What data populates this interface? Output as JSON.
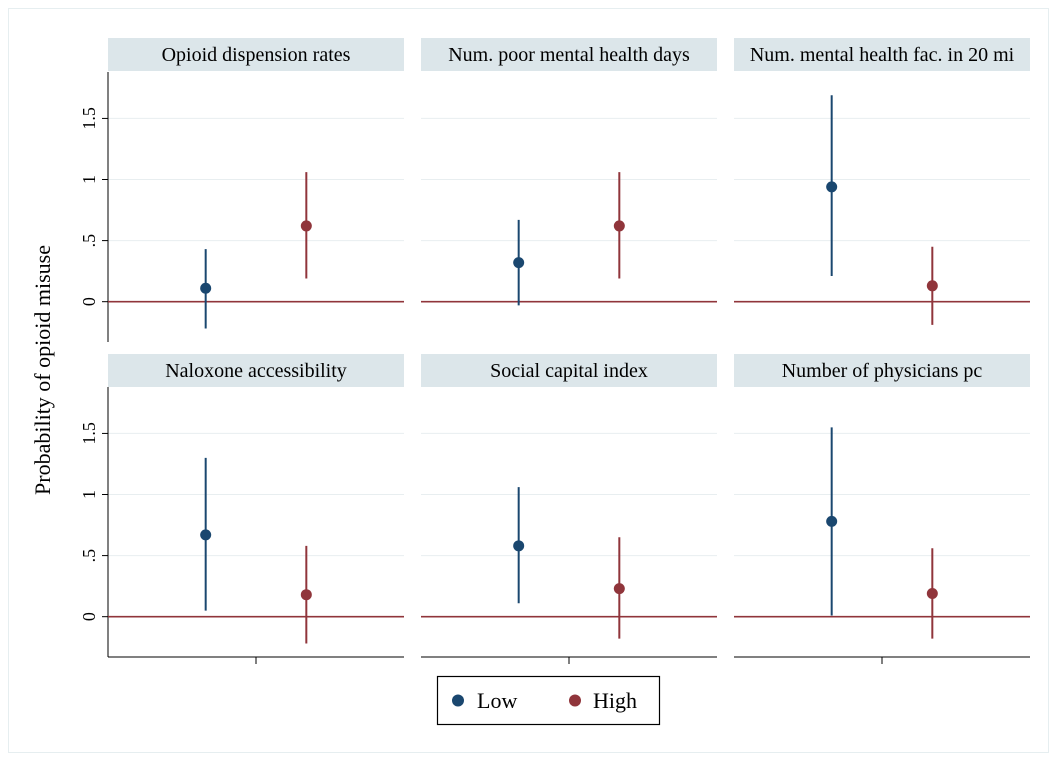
{
  "chart_data": {
    "type": "scatter",
    "subtype": "point-range (coefficient plot) small multiples",
    "ylabel": "Probability of opioid misuse",
    "yticks": [
      0,
      0.5,
      1,
      1.5
    ],
    "ytick_labels": [
      "0",
      ".5",
      "1",
      "1.5"
    ],
    "ylim": [
      -0.33,
      1.88
    ],
    "reference_line": 0,
    "grid": true,
    "legend": {
      "position": "bottom-center",
      "entries": [
        {
          "label": "Low",
          "color": "#1a476f"
        },
        {
          "label": "High",
          "color": "#90353b"
        }
      ]
    },
    "colors": {
      "low": "#1a476f",
      "high": "#90353b",
      "reference_line": "#90353b",
      "panel_title_bg": "#dce6ea",
      "grid": "#e8eef0",
      "outer_frame": "#e6eef0"
    },
    "panels": [
      {
        "title": "Opioid dispension rates",
        "series": [
          {
            "name": "Low",
            "estimate": 0.11,
            "ci": [
              -0.22,
              0.43
            ]
          },
          {
            "name": "High",
            "estimate": 0.62,
            "ci": [
              0.19,
              1.06
            ]
          }
        ]
      },
      {
        "title": "Num. poor mental health days",
        "series": [
          {
            "name": "Low",
            "estimate": 0.32,
            "ci": [
              -0.03,
              0.67
            ]
          },
          {
            "name": "High",
            "estimate": 0.62,
            "ci": [
              0.19,
              1.06
            ]
          }
        ]
      },
      {
        "title": "Num. mental health fac. in 20 mi",
        "series": [
          {
            "name": "Low",
            "estimate": 0.94,
            "ci": [
              0.21,
              1.69
            ]
          },
          {
            "name": "High",
            "estimate": 0.13,
            "ci": [
              -0.19,
              0.45
            ]
          }
        ]
      },
      {
        "title": "Naloxone accessibility",
        "series": [
          {
            "name": "Low",
            "estimate": 0.67,
            "ci": [
              0.05,
              1.3
            ]
          },
          {
            "name": "High",
            "estimate": 0.18,
            "ci": [
              -0.22,
              0.58
            ]
          }
        ]
      },
      {
        "title": "Social capital index",
        "series": [
          {
            "name": "Low",
            "estimate": 0.58,
            "ci": [
              0.11,
              1.06
            ]
          },
          {
            "name": "High",
            "estimate": 0.23,
            "ci": [
              -0.18,
              0.65
            ]
          }
        ]
      },
      {
        "title": "Number of physicians pc",
        "series": [
          {
            "name": "Low",
            "estimate": 0.78,
            "ci": [
              0.01,
              1.55
            ]
          },
          {
            "name": "High",
            "estimate": 0.19,
            "ci": [
              -0.18,
              0.56
            ]
          }
        ]
      }
    ]
  }
}
